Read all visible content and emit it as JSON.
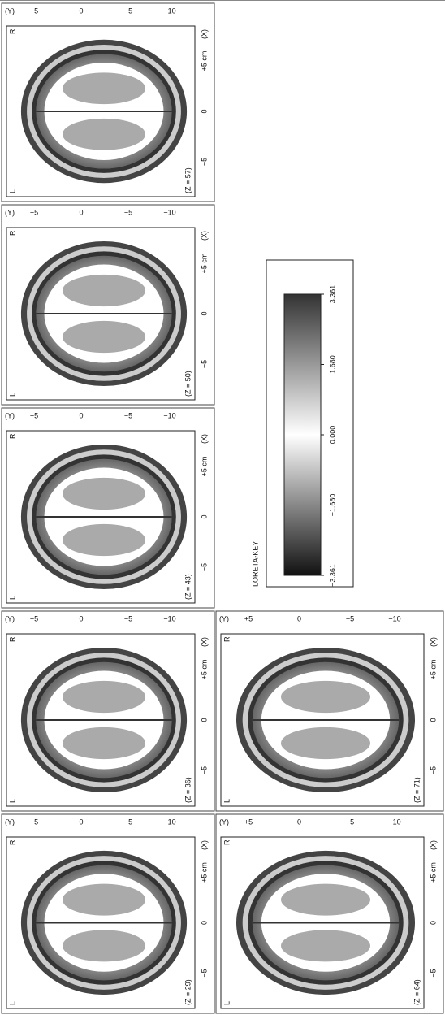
{
  "panels": [
    {
      "z": "(Z = 29)",
      "left": "L",
      "right": "R",
      "x_ticks": [
        "−5",
        "0",
        "+5 cm"
      ],
      "x_axis": "(X)",
      "y_axis": "(Y)",
      "y_ticks": [
        "+5",
        "0",
        "−5",
        "−10"
      ]
    },
    {
      "z": "(Z = 36)",
      "left": "L",
      "right": "R",
      "x_ticks": [
        "−5",
        "0",
        "+5 cm"
      ],
      "x_axis": "(X)",
      "y_axis": "(Y)",
      "y_ticks": [
        "+5",
        "0",
        "−5",
        "−10"
      ]
    },
    {
      "z": "(Z = 43)",
      "left": "L",
      "right": "R",
      "x_ticks": [
        "−5",
        "0",
        "+5 cm"
      ],
      "x_axis": "(X)",
      "y_axis": "(Y)",
      "y_ticks": [
        "+5",
        "0",
        "−5",
        "−10"
      ]
    },
    {
      "z": "(Z = 50)",
      "left": "L",
      "right": "R",
      "x_ticks": [
        "−5",
        "0",
        "+5 cm"
      ],
      "x_axis": "(X)",
      "y_axis": "(Y)",
      "y_ticks": [
        "+5",
        "0",
        "−5",
        "−10"
      ]
    },
    {
      "z": "(Z = 57)",
      "left": "L",
      "right": "R",
      "x_ticks": [
        "−5",
        "0",
        "+5 cm"
      ],
      "x_axis": "(X)",
      "y_axis": "(Y)",
      "y_ticks": [
        "+5",
        "0",
        "−5",
        "−10"
      ]
    },
    {
      "z": "(Z = 64)",
      "left": "L",
      "right": "R",
      "x_ticks": [
        "−5",
        "0",
        "+5 cm"
      ],
      "x_axis": "(X)",
      "y_axis": "(Y)",
      "y_ticks": [
        "+5",
        "0",
        "−5",
        "−10"
      ]
    },
    {
      "z": "(Z = 71)",
      "left": "L",
      "right": "R",
      "x_ticks": [
        "−5",
        "0",
        "+5 cm"
      ],
      "x_axis": "(X)",
      "y_axis": "(Y)",
      "y_ticks": [
        "+5",
        "0",
        "−5",
        "−10"
      ]
    }
  ],
  "colorbar": {
    "title": "LORETA-KEY",
    "ticks": [
      "−3.361",
      "−1.680",
      "0.000",
      "1.680",
      "3.361"
    ]
  }
}
